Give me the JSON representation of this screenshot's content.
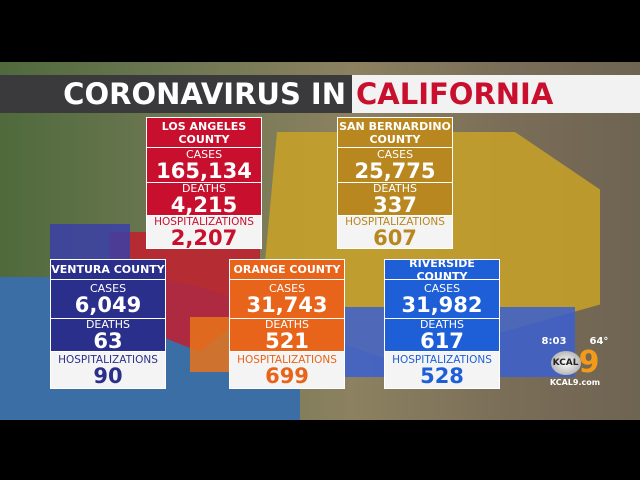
{
  "title": {
    "prefix": "CORONAVIRUS IN",
    "state": "CALIFORNIA",
    "state_color": "#c8102e"
  },
  "labels": {
    "cases": "CASES",
    "deaths": "DEATHS",
    "hospitalizations": "HOSPITALIZATIONS"
  },
  "counties": [
    {
      "name": "LOS ANGELES COUNTY",
      "cases": "165,134",
      "deaths": "4,215",
      "hospitalizations": "2,207",
      "color": "#c8102e"
    },
    {
      "name": "SAN BERNARDINO COUNTY",
      "cases": "25,775",
      "deaths": "337",
      "hospitalizations": "607",
      "color": "#b8871f"
    },
    {
      "name": "VENTURA COUNTY",
      "cases": "6,049",
      "deaths": "63",
      "hospitalizations": "90",
      "color": "#2b2f8c"
    },
    {
      "name": "ORANGE COUNTY",
      "cases": "31,743",
      "deaths": "521",
      "hospitalizations": "699",
      "color": "#e8641a"
    },
    {
      "name": "RIVERSIDE COUNTY",
      "cases": "31,982",
      "deaths": "617",
      "hospitalizations": "528",
      "color": "#1e5fd8"
    }
  ],
  "station": {
    "time": "8:03",
    "temp": "64°",
    "logo": "KCAL 9",
    "url": "KCAL9.com"
  }
}
